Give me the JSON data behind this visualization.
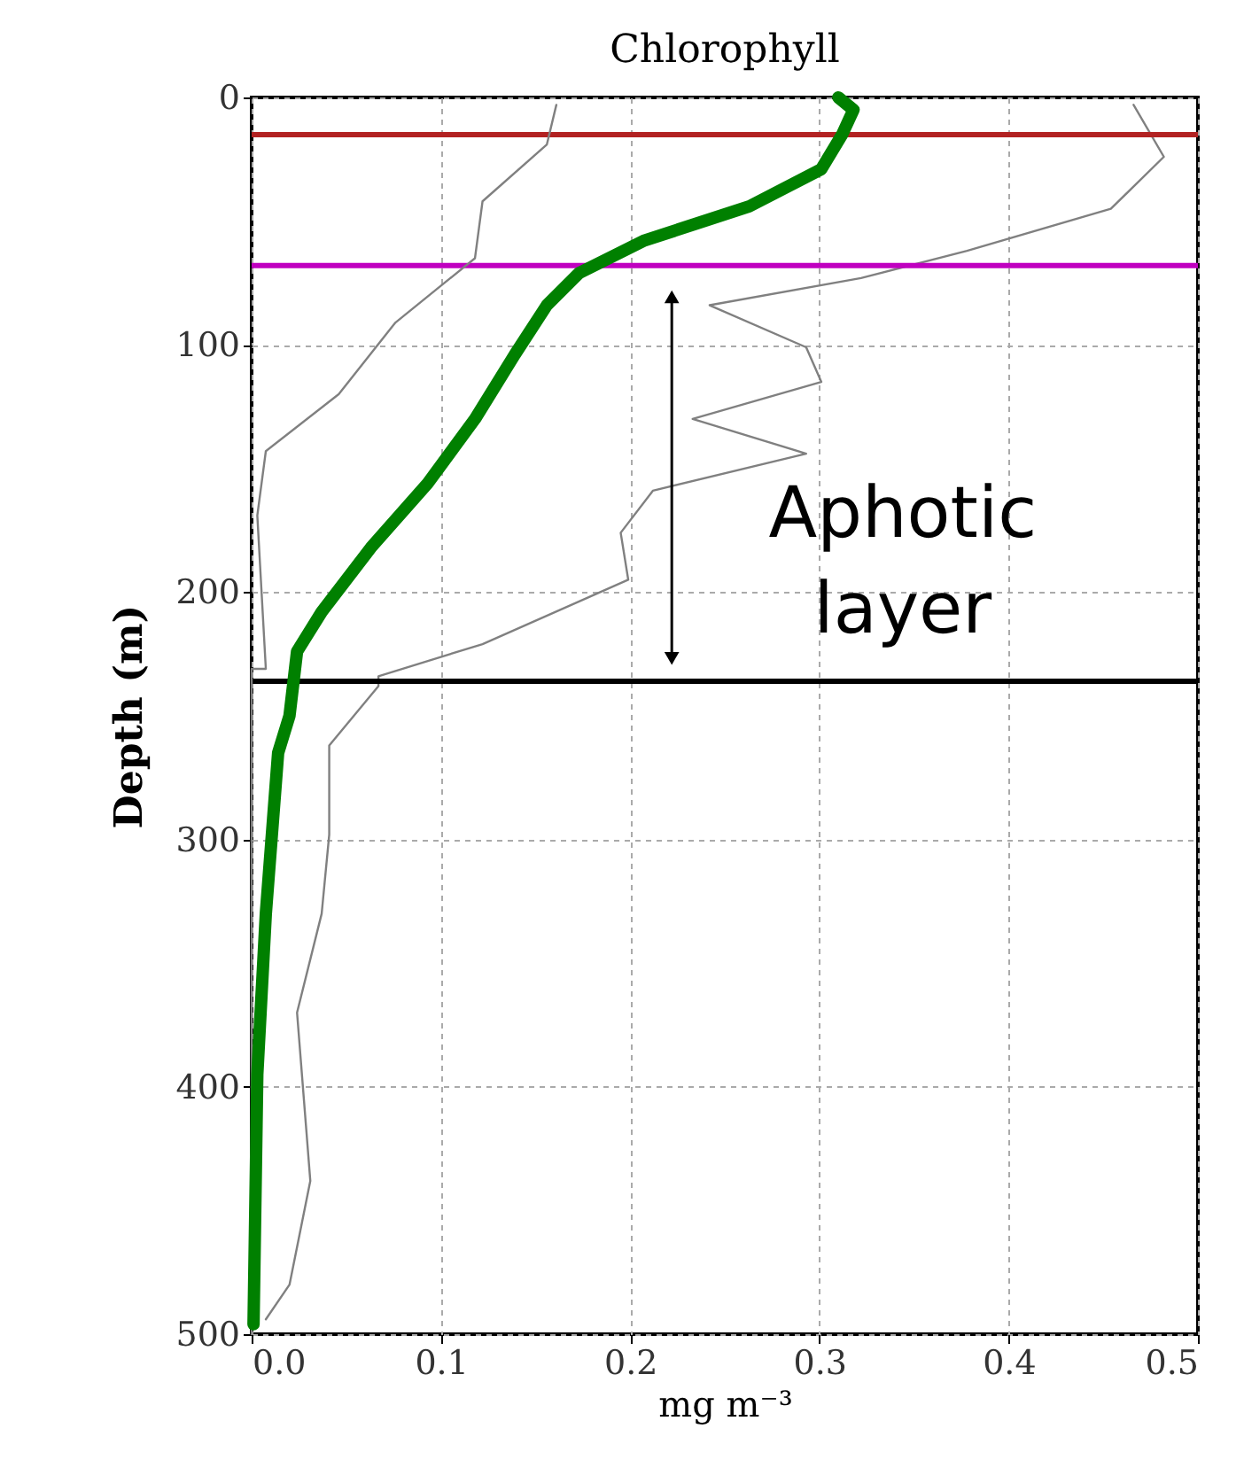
{
  "chart_data": {
    "type": "line",
    "title": "Chlorophyll",
    "xlabel": "mg m⁻³",
    "ylabel": "Depth (m)",
    "xlim": [
      0,
      0.5
    ],
    "xticks": [
      {
        "value": 0,
        "label": "0.0"
      },
      0.1,
      0.2,
      0.3,
      0.4,
      0.5
    ],
    "ylim": [
      500,
      0
    ],
    "yticks": [
      0,
      100,
      200,
      300,
      400,
      500
    ],
    "grid": true,
    "marker": "none",
    "line_style": "solid",
    "series": [
      {
        "color": "#808080",
        "x": [
          0.466,
          0.482,
          0.454,
          0.378,
          0.322,
          0.242,
          0.293,
          0.301,
          0.233,
          0.293,
          0.212,
          0.195,
          0.199,
          0.122,
          0.067,
          0.067,
          0.041,
          0.041,
          0.037,
          0.024,
          0.031,
          0.02,
          0.0075
        ],
        "values": [
          3,
          24,
          45,
          62,
          73,
          84,
          101,
          115,
          130,
          144,
          159,
          176,
          195,
          221,
          234,
          238,
          262,
          298,
          330,
          370,
          438,
          480,
          494
        ]
      },
      {
        "color": "#808080",
        "x": [
          0.161,
          0.156,
          0.122,
          0.118,
          0.076,
          0.046,
          0.0075,
          0.003,
          0.0075,
          0.0,
          0.0
        ],
        "values": [
          3,
          19,
          42,
          65,
          91,
          120,
          143,
          169,
          231,
          231,
          500
        ]
      },
      {
        "color": "#008000",
        "x": [
          0.31,
          0.318,
          0.312,
          0.301,
          0.263,
          0.207,
          0.173,
          0.156,
          0.139,
          0.118,
          0.093,
          0.063,
          0.037,
          0.024,
          0.02,
          0.014,
          0.0075,
          0.003,
          0.001
        ],
        "values": [
          0,
          5,
          15,
          29,
          44,
          58,
          71,
          84,
          104,
          130,
          156,
          182,
          208,
          224,
          250,
          265,
          330,
          395,
          496
        ]
      }
    ],
    "ref_lines": [
      {
        "axis": "y",
        "value": 15,
        "color": "#b22222"
      },
      {
        "axis": "y",
        "value": 68,
        "color": "#c000c0"
      },
      {
        "axis": "y",
        "value": 236,
        "color": "#000000"
      }
    ],
    "annotations": [
      "Aphotic layer"
    ]
  }
}
